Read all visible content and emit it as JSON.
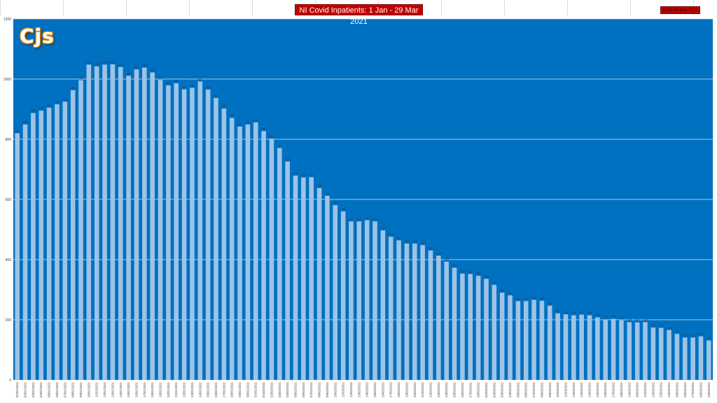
{
  "title": "NI Covid Inpatients: 1 Jan - 29 Mar 2021",
  "source": "Data Source: DoH",
  "logo_text": "Cjs",
  "colors": {
    "plot_bg": "#0070c0",
    "bar": "#9dc3e6",
    "title_bg": "#c00000"
  },
  "chart_data": {
    "type": "bar",
    "title": "NI Covid Inpatients: 1 Jan - 29 Mar 2021",
    "xlabel": "",
    "ylabel": "",
    "ylim": [
      0,
      1200
    ],
    "yticks": [
      0,
      200,
      400,
      600,
      800,
      1000,
      1200
    ],
    "grid": true,
    "categories": [
      "01/01/2021",
      "02/01/2021",
      "03/01/2021",
      "04/01/2021",
      "05/01/2021",
      "06/01/2021",
      "07/01/2021",
      "08/01/2021",
      "09/01/2021",
      "10/01/2021",
      "11/01/2021",
      "12/01/2021",
      "13/01/2021",
      "14/01/2021",
      "15/01/2021",
      "16/01/2021",
      "17/01/2021",
      "18/01/2021",
      "19/01/2021",
      "20/01/2021",
      "21/01/2021",
      "22/01/2021",
      "23/01/2021",
      "24/01/2021",
      "25/01/2021",
      "26/01/2021",
      "27/01/2021",
      "28/01/2021",
      "29/01/2021",
      "30/01/2021",
      "31/01/2021",
      "01/02/2021",
      "02/02/2021",
      "03/02/2021",
      "04/02/2021",
      "05/02/2021",
      "06/02/2021",
      "07/02/2021",
      "08/02/2021",
      "09/02/2021",
      "10/02/2021",
      "11/02/2021",
      "12/02/2021",
      "13/02/2021",
      "14/02/2021",
      "15/02/2021",
      "16/02/2021",
      "17/02/2021",
      "18/02/2021",
      "19/02/2021",
      "20/02/2021",
      "21/02/2021",
      "22/02/2021",
      "23/02/2021",
      "24/02/2021",
      "25/02/2021",
      "26/02/2021",
      "27/02/2021",
      "28/02/2021",
      "01/03/2021",
      "02/03/2021",
      "03/03/2021",
      "04/03/2021",
      "05/03/2021",
      "06/03/2021",
      "07/03/2021",
      "08/03/2021",
      "09/03/2021",
      "10/03/2021",
      "11/03/2021",
      "12/03/2021",
      "13/03/2021",
      "14/03/2021",
      "15/03/2021",
      "16/03/2021",
      "17/03/2021",
      "18/03/2021",
      "19/03/2021",
      "20/03/2021",
      "21/03/2021",
      "22/03/2021",
      "23/03/2021",
      "24/03/2021",
      "25/03/2021",
      "26/03/2021",
      "27/03/2021",
      "28/03/2021",
      "29/03/2021"
    ],
    "values": [
      820,
      849,
      887,
      895,
      905,
      916,
      925,
      963,
      996,
      1048,
      1042,
      1048,
      1049,
      1040,
      1011,
      1032,
      1038,
      1022,
      997,
      979,
      986,
      966,
      971,
      992,
      965,
      937,
      902,
      871,
      842,
      849,
      856,
      827,
      802,
      771,
      726,
      679,
      673,
      674,
      638,
      612,
      581,
      560,
      527,
      527,
      531,
      527,
      497,
      476,
      464,
      453,
      453,
      448,
      430,
      413,
      393,
      373,
      353,
      352,
      346,
      336,
      316,
      290,
      281,
      262,
      262,
      266,
      263,
      247,
      221,
      218,
      215,
      217,
      215,
      208,
      201,
      203,
      198,
      192,
      191,
      192,
      174,
      173,
      166,
      153,
      141,
      141,
      145,
      131
    ],
    "data_labels": [
      "820",
      "849",
      "887",
      "895",
      "905",
      "916",
      "925",
      "963",
      "996",
      "1048",
      "1042",
      "1048",
      "1049",
      "1040",
      "1011",
      "1032",
      "1038",
      "1022",
      "997",
      "979",
      "986",
      "966",
      "971",
      "992",
      "965",
      "937",
      "902",
      "871",
      "842",
      "849",
      "856",
      "827",
      "802",
      "771",
      "726",
      "679",
      "673",
      "674",
      "638",
      "612",
      "581",
      "560",
      "527",
      "527",
      "531",
      "527",
      "497",
      "476",
      "464",
      "453",
      "453",
      "448",
      "430",
      "413",
      "393",
      "373",
      "353",
      "352",
      "346",
      "336",
      "316",
      "290",
      "281",
      "262",
      "262",
      "266",
      "263",
      "247",
      "221",
      "218",
      "215",
      "217",
      "215",
      "208",
      "201",
      "203",
      "198",
      "192",
      "191",
      "192",
      "174",
      "173",
      "166",
      "153",
      "141",
      "141",
      "145",
      "131"
    ]
  }
}
